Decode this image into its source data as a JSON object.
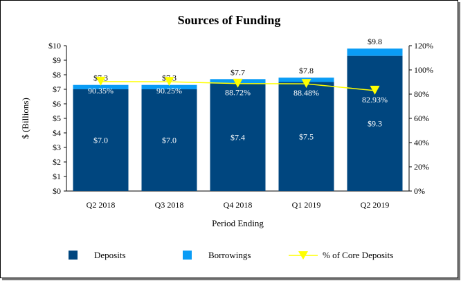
{
  "chart_data": {
    "type": "bar",
    "stacked": true,
    "title": "Sources of Funding",
    "xlabel": "Period Ending",
    "ylabel": "$ (Billions)",
    "ylim": [
      0,
      10
    ],
    "y2lim": [
      0,
      120
    ],
    "yticks": [
      "$0",
      "$1",
      "$2",
      "$3",
      "$4",
      "$5",
      "$6",
      "$7",
      "$8",
      "$9",
      "$10"
    ],
    "y2ticks": [
      "0%",
      "20%",
      "40%",
      "60%",
      "80%",
      "100%",
      "120%"
    ],
    "categories": [
      "Q2 2018",
      "Q3 2018",
      "Q4 2018",
      "Q1 2019",
      "Q2 2019"
    ],
    "series": [
      {
        "name": "Deposits",
        "values": [
          7.0,
          7.0,
          7.4,
          7.5,
          9.3
        ],
        "labels": [
          "$7.0",
          "$7.0",
          "$7.4",
          "$7.5",
          "$9.3"
        ],
        "color": "#00467f"
      },
      {
        "name": "Borrowings",
        "values": [
          0.3,
          0.3,
          0.3,
          0.3,
          0.5
        ],
        "color": "#0a9cf5"
      },
      {
        "name": "% of Core Deposits",
        "type": "line",
        "axis": "right",
        "values": [
          90.35,
          90.25,
          88.72,
          88.48,
          82.93
        ],
        "labels": [
          "90.35%",
          "90.25%",
          "88.72%",
          "88.48%",
          "82.93%"
        ],
        "color": "#ffff00"
      }
    ],
    "totals": [
      "$7.3",
      "$7.3",
      "$7.7",
      "$7.8",
      "$9.8"
    ],
    "legend_position": "bottom",
    "grid": false
  }
}
